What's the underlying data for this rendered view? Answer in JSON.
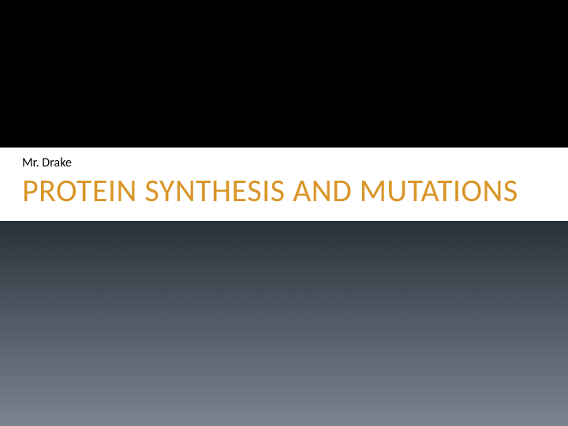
{
  "slide": {
    "subtitle": "Mr. Drake",
    "title": "PROTEIN SYNTHESIS AND MUTATIONS",
    "subtitle_color": "#000000",
    "subtitle_fontsize": 16,
    "subtitle_weight": "400",
    "title_color": "#d99528",
    "title_fontsize": 40,
    "title_weight": "400",
    "background_color": "#000000",
    "content_band_bg": "#ffffff",
    "bottom_gradient_start": "#2a3038",
    "bottom_gradient_mid": "#5a6470",
    "bottom_gradient_end": "#7a8490",
    "top_section_height": 187,
    "content_padding_left": 28
  }
}
